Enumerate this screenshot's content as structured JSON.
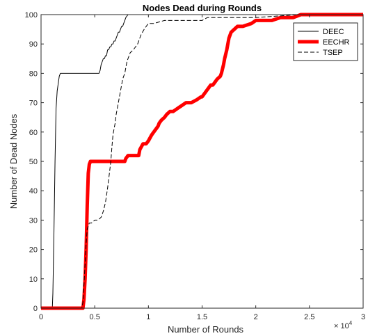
{
  "chart_data": {
    "type": "line",
    "title": "Nodes Dead during Rounds",
    "xlabel": "Number of Rounds",
    "ylabel": "Number of Dead Nodes",
    "x_exponent_label": "× 10",
    "x_exponent_power": "4",
    "xlim": [
      0,
      30000
    ],
    "ylim": [
      0,
      100
    ],
    "x_ticks": [
      0,
      5000,
      10000,
      15000,
      20000,
      25000,
      30000
    ],
    "x_tick_labels": [
      "0",
      "0.5",
      "1",
      "1.5",
      "2",
      "2.5",
      "3"
    ],
    "y_ticks": [
      0,
      10,
      20,
      30,
      40,
      50,
      60,
      70,
      80,
      90,
      100
    ],
    "y_tick_labels": [
      "0",
      "10",
      "20",
      "30",
      "40",
      "50",
      "60",
      "70",
      "80",
      "90",
      "100"
    ],
    "grid": false,
    "legend_position": "top-right",
    "series": [
      {
        "name": "DEEC",
        "color": "#000000",
        "style": "solid",
        "width": 1,
        "x": [
          0,
          1050,
          1100,
          1200,
          1300,
          1400,
          1500,
          1700,
          1800,
          2000,
          3000,
          4000,
          5400,
          5500,
          5600,
          5700,
          5800,
          5900,
          6000,
          6100,
          6200,
          6300,
          6400,
          6500,
          6600,
          6700,
          6800,
          6900,
          7000,
          7100,
          7200,
          7300,
          7400,
          7500,
          7600,
          7700,
          7800,
          7900,
          8100,
          8300,
          10000
        ],
        "y": [
          0,
          0,
          5,
          25,
          50,
          68,
          74,
          79,
          80,
          80,
          80,
          80,
          80,
          81,
          83,
          84,
          85,
          85,
          86,
          86,
          88,
          88,
          89,
          89,
          90,
          90,
          91,
          91,
          92,
          93,
          94,
          94,
          95,
          96,
          96,
          97,
          98,
          99,
          100,
          100,
          100
        ]
      },
      {
        "name": "EECHR",
        "color": "#ff0000",
        "style": "solid",
        "width": 5,
        "x": [
          0,
          3800,
          3900,
          4000,
          4100,
          4200,
          4300,
          4400,
          4500,
          4600,
          5000,
          6000,
          7800,
          7900,
          8100,
          9100,
          9200,
          9500,
          9800,
          10000,
          10300,
          10500,
          10700,
          10900,
          11000,
          11200,
          11500,
          11700,
          12000,
          12300,
          12700,
          13100,
          13500,
          14000,
          14500,
          14900,
          15000,
          15200,
          15400,
          15600,
          15800,
          16000,
          16200,
          16400,
          16700,
          16800,
          17000,
          17100,
          17300,
          17500,
          17700,
          18000,
          18300,
          18800,
          19600,
          20000,
          20500,
          21500,
          22300,
          23500,
          24200,
          25000,
          30000
        ],
        "y": [
          0,
          0,
          0,
          3,
          10,
          20,
          35,
          46,
          49,
          50,
          50,
          50,
          50,
          51,
          52,
          52,
          54,
          56,
          56,
          57,
          59,
          60,
          61,
          62,
          63,
          64,
          65,
          66,
          67,
          67,
          68,
          69,
          70,
          70,
          71,
          72,
          72,
          73,
          74,
          75,
          76,
          76,
          77,
          78,
          79,
          80,
          83,
          85,
          88,
          92,
          94,
          95,
          96,
          96,
          97,
          98,
          98,
          98,
          99,
          99,
          100,
          100,
          100
        ]
      },
      {
        "name": "TSEP",
        "color": "#000000",
        "style": "dashed",
        "width": 1,
        "x": [
          0,
          3800,
          3900,
          4000,
          4100,
          4200,
          4300,
          4400,
          4500,
          4700,
          5000,
          5300,
          5600,
          5800,
          6000,
          6200,
          6400,
          6500,
          6600,
          6700,
          6800,
          6900,
          7000,
          7100,
          7200,
          7300,
          7400,
          7500,
          7600,
          7700,
          7800,
          7900,
          8000,
          8100,
          8300,
          8600,
          9000,
          9300,
          9600,
          9800,
          10000,
          10500,
          11500,
          15000,
          15500,
          16500,
          18000,
          20000,
          24000,
          25000,
          30000
        ],
        "y": [
          0,
          0,
          2,
          8,
          15,
          22,
          27,
          28,
          29,
          29,
          30,
          30,
          31,
          33,
          36,
          41,
          47,
          50,
          55,
          59,
          61,
          63,
          66,
          68,
          70,
          72,
          74,
          76,
          78,
          79,
          80,
          82,
          84,
          85,
          87,
          88,
          90,
          93,
          95,
          96,
          97,
          97,
          98,
          98,
          99,
          99,
          99,
          99,
          100,
          100,
          100
        ]
      }
    ]
  }
}
